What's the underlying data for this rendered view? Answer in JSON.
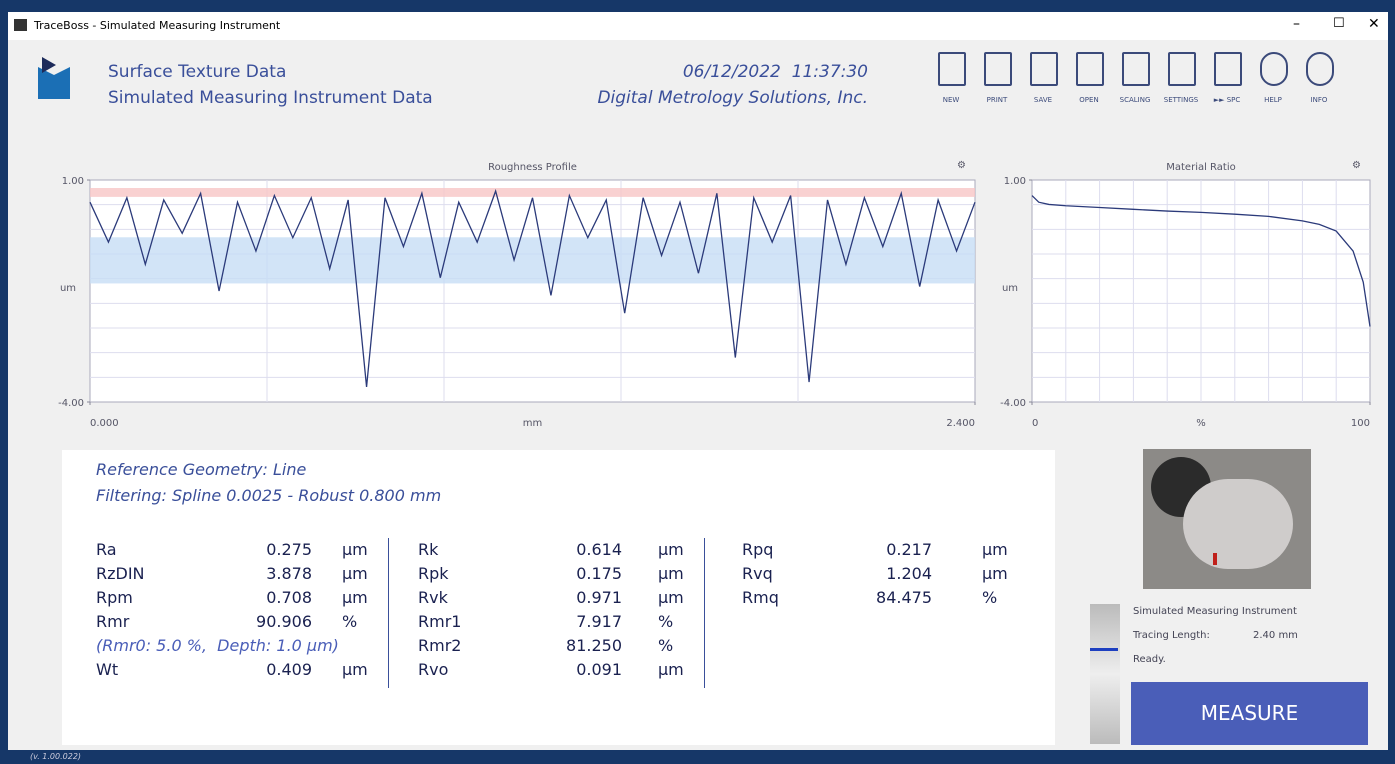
{
  "window": {
    "title": "TraceBoss - Simulated Measuring Instrument"
  },
  "header": {
    "line1": "Surface Texture Data",
    "line2": "Simulated Measuring Instrument Data",
    "datetime": "06/12/2022  11:37:30",
    "company": "Digital Metrology Solutions, Inc."
  },
  "toolbar": [
    "NEW",
    "PRINT",
    "SAVE",
    "OPEN",
    "SCALING",
    "SETTINGS",
    "►► SPC",
    "HELP",
    "INFO"
  ],
  "profile_chart": {
    "title": "Roughness Profile",
    "ylabel": "um",
    "xlabel": "mm",
    "ylim": [
      -4,
      1
    ],
    "xlim": [
      0,
      2.4
    ],
    "yticks": [
      {
        "value": 1,
        "label": "1.00"
      },
      {
        "value": -4,
        "label": "-4.00"
      }
    ],
    "xticks": [
      {
        "value": 0,
        "label": "0.000"
      },
      {
        "value": 2.4,
        "label": "2.400"
      }
    ],
    "peak_band": [
      0.62,
      0.82
    ],
    "valley_band": [
      -1.33,
      -0.29
    ],
    "color": "#2b3a7a",
    "x": [
      0,
      0.05,
      0.1,
      0.15,
      0.2,
      0.25,
      0.3,
      0.35,
      0.4,
      0.45,
      0.5,
      0.55,
      0.6,
      0.65,
      0.7,
      0.75,
      0.8,
      0.85,
      0.9,
      0.95,
      1,
      1.05,
      1.1,
      1.15,
      1.2,
      1.25,
      1.3,
      1.35,
      1.4,
      1.45,
      1.5,
      1.55,
      1.6,
      1.65,
      1.7,
      1.75,
      1.8,
      1.85,
      1.9,
      1.95,
      2,
      2.05,
      2.1,
      2.15,
      2.2,
      2.25,
      2.3,
      2.35,
      2.4
    ],
    "values": [
      0.5,
      -0.4,
      0.6,
      -0.9,
      0.55,
      -0.2,
      0.7,
      -1.5,
      0.5,
      -0.6,
      0.65,
      -0.3,
      0.6,
      -1.0,
      0.55,
      -3.66,
      0.6,
      -0.5,
      0.7,
      -1.2,
      0.5,
      -0.4,
      0.75,
      -0.8,
      0.6,
      -1.6,
      0.65,
      -0.3,
      0.55,
      -2.0,
      0.6,
      -0.7,
      0.5,
      -1.1,
      0.7,
      -3.0,
      0.6,
      -0.4,
      0.65,
      -3.55,
      0.55,
      -0.9,
      0.6,
      -0.5,
      0.7,
      -1.4,
      0.55,
      -0.6,
      0.5
    ]
  },
  "material_chart": {
    "title": "Material Ratio",
    "ylabel": "um",
    "xlabel": "%",
    "ylim": [
      -4,
      1
    ],
    "xlim": [
      0,
      100
    ],
    "yticks": [
      {
        "value": 1,
        "label": "1.00"
      },
      {
        "value": -4,
        "label": "-4.00"
      }
    ],
    "xticks": [
      0,
      100
    ],
    "color": "#2b3a7a",
    "x": [
      0,
      2,
      5,
      10,
      20,
      30,
      40,
      50,
      60,
      70,
      80,
      85,
      90,
      95,
      98,
      100
    ],
    "values": [
      0.65,
      0.5,
      0.45,
      0.42,
      0.38,
      0.34,
      0.3,
      0.27,
      0.23,
      0.18,
      0.08,
      0.0,
      -0.15,
      -0.6,
      -1.3,
      -2.3
    ]
  },
  "results": {
    "reference": "Reference Geometry: Line",
    "filtering": "Filtering: Spline 0.0025 - Robust 0.800 mm",
    "columns": [
      [
        [
          "Ra",
          "0.275",
          "µm"
        ],
        [
          "RzDIN",
          "3.878",
          "µm"
        ],
        [
          "Rpm",
          "0.708",
          "µm"
        ],
        [
          "Rmr",
          "90.906",
          "%"
        ],
        "(Rmr0: 5.0 %,  Depth: 1.0 µm)",
        [
          "Wt",
          "0.409",
          "µm"
        ]
      ],
      [
        [
          "Rk",
          "0.614",
          "µm"
        ],
        [
          "Rpk",
          "0.175",
          "µm"
        ],
        [
          "Rvk",
          "0.971",
          "µm"
        ],
        [
          "Rmr1",
          "7.917",
          "%"
        ],
        [
          "Rmr2",
          "81.250",
          "%"
        ],
        [
          "Rvo",
          "0.091",
          "µm"
        ]
      ],
      [
        [
          "Rpq",
          "0.217",
          "µm"
        ],
        [
          "Rvq",
          "1.204",
          "µm"
        ],
        [
          "Rmq",
          "84.475",
          "%"
        ]
      ]
    ]
  },
  "status": {
    "instrument": "Simulated Measuring Instrument",
    "tracing_label": "Tracing Length:",
    "tracing_value": "2.40 mm",
    "state": "Ready.",
    "button": "MEASURE",
    "version": "(v. 1.00.022)"
  }
}
